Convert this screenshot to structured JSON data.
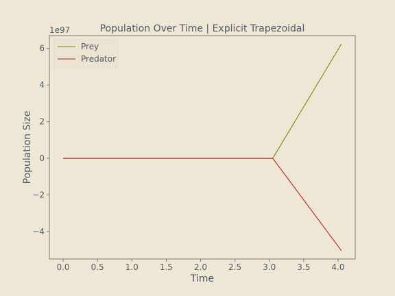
{
  "chart_data": {
    "type": "line",
    "title": "Population Over Time | Explicit Trapezoidal",
    "xlabel": "Time",
    "ylabel": "Population Size",
    "y_offset_label": "1e97",
    "xlim": [
      -0.2,
      4.25
    ],
    "ylim": [
      -5.5,
      6.7
    ],
    "x_ticks": [
      0.0,
      0.5,
      1.0,
      1.5,
      2.0,
      2.5,
      3.0,
      3.5,
      4.0
    ],
    "x_tick_labels": [
      "0.0",
      "0.5",
      "1.0",
      "1.5",
      "2.0",
      "2.5",
      "3.0",
      "3.5",
      "4.0"
    ],
    "y_ticks": [
      -4,
      -2,
      0,
      2,
      4,
      6
    ],
    "y_tick_labels": [
      "−4",
      "−2",
      "0",
      "2",
      "4",
      "6"
    ],
    "grid": false,
    "legend_position": "top-left",
    "series": [
      {
        "name": "Prey",
        "color": "#808000",
        "x": [
          0.0,
          3.05,
          4.05
        ],
        "y": [
          0,
          0,
          6.25
        ]
      },
      {
        "name": "Predator",
        "color": "#b22222",
        "x": [
          0.0,
          3.05,
          4.05
        ],
        "y": [
          0,
          0,
          -5.05
        ]
      }
    ]
  }
}
